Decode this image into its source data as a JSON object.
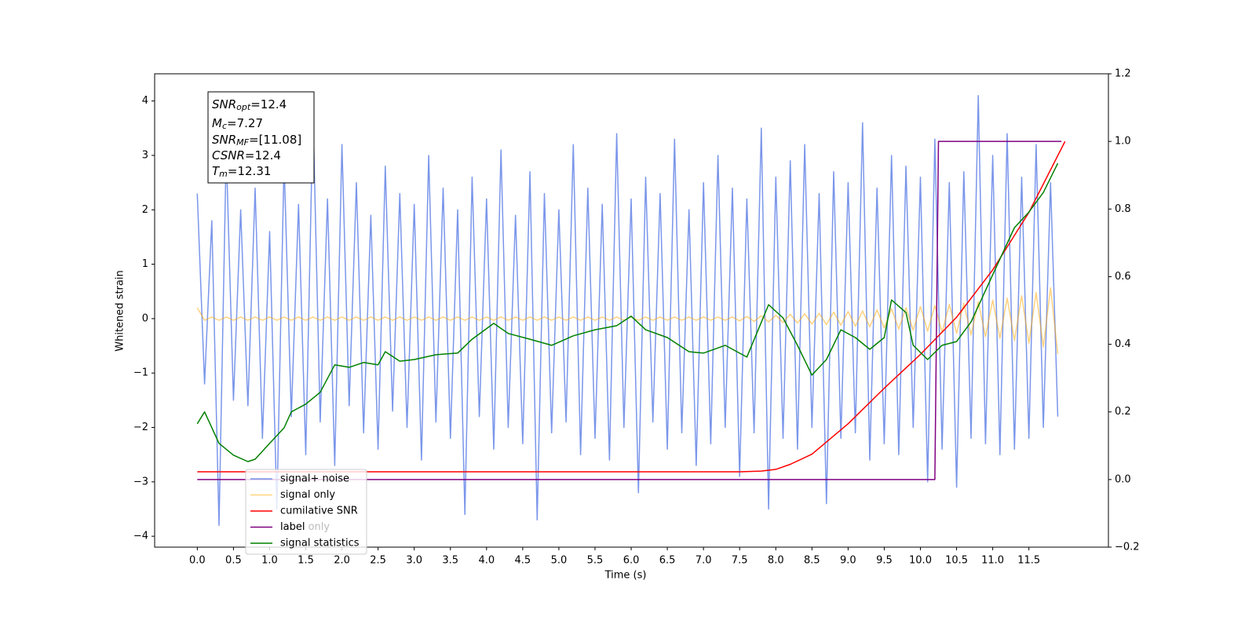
{
  "chart_data": {
    "type": "line",
    "xlabel": "Time (s)",
    "ylabel": "Whitened strain",
    "xlim": [
      -0.59,
      12.6
    ],
    "ylim": [
      -4.2,
      4.5
    ],
    "y2lim": [
      -0.2,
      1.2
    ],
    "xticks": [
      {
        "value": 0,
        "label": "0.0"
      },
      0.5,
      {
        "value": 1,
        "label": "1.0"
      },
      1.5,
      {
        "value": 2,
        "label": "2.0"
      },
      2.5,
      {
        "value": 3,
        "label": "3.0"
      },
      3.5,
      {
        "value": 4,
        "label": "4.0"
      },
      4.5,
      {
        "value": 5,
        "label": "5.0"
      },
      5.5,
      {
        "value": 6,
        "label": "6.0"
      },
      6.5,
      {
        "value": 7,
        "label": "7.0"
      },
      7.5,
      {
        "value": 8,
        "label": "8.0"
      },
      8.5,
      {
        "value": 9,
        "label": "9.0"
      },
      9.5,
      {
        "value": 10,
        "label": "10.0"
      },
      10.5,
      {
        "value": 11,
        "label": "11.0"
      },
      11.5
    ],
    "yticks": [
      {
        "value": -4,
        "label": "−4"
      },
      {
        "value": -3,
        "label": "−3"
      },
      {
        "value": -2,
        "label": "−2"
      },
      {
        "value": -1,
        "label": "−1"
      },
      0,
      1,
      2,
      3,
      4
    ],
    "y2ticks": [
      {
        "value": -0.2,
        "label": "−0.2"
      },
      {
        "value": 0,
        "label": "0.0"
      },
      0.2,
      0.4,
      0.6,
      0.8,
      {
        "value": 1,
        "label": "1.0"
      },
      1.2
    ],
    "annotations": [
      {
        "symbol": "SNR",
        "subscript": "opt",
        "text": "=12.4"
      },
      {
        "symbol": "M",
        "subscript": "c",
        "text": "=7.27"
      },
      {
        "symbol": "SNR",
        "subscript": "MF",
        "text": "=[11.08]"
      },
      {
        "symbol": "CSNR",
        "text": "=12.4"
      },
      {
        "symbol": "T",
        "subscript": "m",
        "text": "=12.31"
      }
    ],
    "legend_hidden_entry": "label only",
    "x": [
      0.0,
      0.1,
      0.2,
      0.3,
      0.4,
      0.5,
      0.6,
      0.7,
      0.8,
      0.9,
      1.0,
      1.1,
      1.2,
      1.3,
      1.4,
      1.5,
      1.6,
      1.7,
      1.8,
      1.9,
      2.0,
      2.1,
      2.2,
      2.3,
      2.4,
      2.5,
      2.6,
      2.7,
      2.8,
      2.9,
      3.0,
      3.1,
      3.2,
      3.3,
      3.4,
      3.5,
      3.6,
      3.7,
      3.8,
      3.9,
      4.0,
      4.1,
      4.2,
      4.3,
      4.4,
      4.5,
      4.6,
      4.7,
      4.8,
      4.9,
      5.0,
      5.1,
      5.2,
      5.3,
      5.4,
      5.5,
      5.6,
      5.7,
      5.8,
      5.9,
      6.0,
      6.1,
      6.2,
      6.3,
      6.4,
      6.5,
      6.6,
      6.7,
      6.8,
      6.9,
      7.0,
      7.1,
      7.2,
      7.3,
      7.4,
      7.5,
      7.6,
      7.7,
      7.8,
      7.9,
      8.0,
      8.1,
      8.2,
      8.3,
      8.4,
      8.5,
      8.6,
      8.7,
      8.8,
      8.9,
      9.0,
      9.1,
      9.2,
      9.3,
      9.4,
      9.5,
      9.6,
      9.7,
      9.8,
      9.9,
      10.0,
      10.1,
      10.2,
      10.3,
      10.4,
      10.5,
      10.6,
      10.7,
      10.8,
      10.9,
      11.0,
      11.1,
      11.2,
      11.3,
      11.4,
      11.5,
      11.6,
      11.7,
      11.8,
      11.9
    ],
    "series": [
      {
        "name": "signal+ noise",
        "color": "#4169e1",
        "opacity": 0.7,
        "values": [
          2.3,
          -1.2,
          1.8,
          -3.8,
          3.1,
          -1.5,
          2.0,
          -1.6,
          2.4,
          -2.2,
          1.6,
          -3.5,
          2.9,
          -1.8,
          2.1,
          -2.5,
          3.8,
          -1.9,
          2.2,
          -2.7,
          3.2,
          -1.6,
          2.5,
          -2.1,
          1.9,
          -2.4,
          2.8,
          -1.7,
          2.3,
          -2.0,
          2.1,
          -2.6,
          3.0,
          -1.9,
          2.4,
          -2.2,
          2.0,
          -3.6,
          2.6,
          -1.8,
          2.2,
          -2.4,
          3.1,
          -2.0,
          1.9,
          -2.3,
          2.7,
          -3.7,
          2.3,
          -2.1,
          2.0,
          -1.9,
          3.2,
          -2.5,
          2.4,
          -2.2,
          2.1,
          -2.6,
          3.4,
          -2.0,
          2.2,
          -3.2,
          2.6,
          -1.9,
          2.3,
          -2.4,
          3.3,
          -2.1,
          2.0,
          -2.7,
          2.5,
          -2.3,
          3.0,
          -2.0,
          2.4,
          -2.9,
          2.2,
          -2.1,
          3.5,
          -3.5,
          2.6,
          -2.2,
          2.9,
          -2.4,
          3.2,
          -2.0,
          2.3,
          -3.4,
          2.7,
          -2.2,
          2.5,
          -2.1,
          3.6,
          -2.6,
          2.4,
          -2.3,
          3.0,
          -2.5,
          2.8,
          -2.0,
          2.6,
          -3.0,
          3.3,
          -2.4,
          2.5,
          -3.1,
          2.7,
          -2.2,
          4.1,
          -2.3,
          3.0,
          -2.5,
          3.4,
          -2.4,
          2.6,
          -2.2,
          3.2,
          -2.0,
          2.5,
          -1.8
        ]
      },
      {
        "name": "signal only",
        "color": "#ffa500",
        "opacity": 0.5,
        "values": [
          0.2,
          -0.03,
          0.03,
          -0.03,
          0.03,
          -0.03,
          0.03,
          -0.03,
          0.03,
          -0.03,
          0.03,
          -0.03,
          0.03,
          -0.03,
          0.03,
          -0.03,
          0.03,
          -0.03,
          0.03,
          -0.03,
          0.03,
          -0.03,
          0.03,
          -0.03,
          0.03,
          -0.03,
          0.03,
          -0.03,
          0.03,
          -0.03,
          0.03,
          -0.03,
          0.03,
          -0.03,
          0.03,
          -0.03,
          0.03,
          -0.03,
          0.03,
          -0.03,
          0.03,
          -0.03,
          0.03,
          -0.03,
          0.03,
          -0.03,
          0.03,
          -0.03,
          0.03,
          -0.03,
          0.03,
          -0.03,
          0.03,
          -0.03,
          0.03,
          -0.03,
          0.03,
          -0.03,
          0.03,
          -0.03,
          0.03,
          -0.03,
          0.03,
          -0.03,
          0.03,
          -0.03,
          0.03,
          -0.03,
          0.03,
          -0.03,
          0.03,
          -0.03,
          0.03,
          -0.03,
          0.03,
          -0.04,
          0.04,
          -0.05,
          0.05,
          -0.06,
          0.06,
          -0.07,
          0.08,
          -0.08,
          0.09,
          -0.1,
          0.1,
          -0.11,
          0.12,
          -0.12,
          0.13,
          -0.14,
          0.14,
          -0.15,
          0.16,
          -0.17,
          0.18,
          -0.19,
          0.2,
          -0.21,
          0.22,
          -0.23,
          0.24,
          -0.25,
          0.26,
          -0.27,
          0.28,
          -0.3,
          0.31,
          -0.33,
          0.34,
          -0.36,
          0.38,
          -0.4,
          0.42,
          -0.45,
          0.48,
          -0.52,
          0.57,
          -0.65
        ]
      },
      {
        "name": "cumilative SNR",
        "color": "#ff0000",
        "axis": "y2",
        "x": [
          0,
          1,
          2,
          3,
          4,
          5,
          6,
          7,
          7.5,
          7.8,
          8.0,
          8.2,
          8.5,
          9.0,
          9.5,
          10.0,
          10.5,
          11.0,
          11.5,
          12.0
        ],
        "values": [
          0.023,
          0.023,
          0.023,
          0.023,
          0.023,
          0.023,
          0.023,
          0.023,
          0.023,
          0.025,
          0.03,
          0.045,
          0.075,
          0.165,
          0.27,
          0.37,
          0.48,
          0.62,
          0.79,
          1.0
        ]
      },
      {
        "name": "label",
        "color": "#800080",
        "axis": "y2",
        "x": [
          0,
          10.2,
          10.25,
          11.95
        ],
        "values": [
          0,
          0,
          1,
          1
        ]
      },
      {
        "name": "signal statistics",
        "color": "#008000",
        "axis": "y2",
        "x": [
          0,
          0.1,
          0.3,
          0.5,
          0.7,
          0.8,
          1.0,
          1.2,
          1.3,
          1.5,
          1.7,
          1.9,
          2.1,
          2.3,
          2.5,
          2.6,
          2.8,
          3.0,
          3.3,
          3.6,
          3.8,
          4.1,
          4.3,
          4.6,
          4.9,
          5.2,
          5.5,
          5.8,
          6.0,
          6.2,
          6.5,
          6.8,
          7.0,
          7.3,
          7.6,
          7.9,
          8.1,
          8.3,
          8.5,
          8.7,
          8.9,
          9.1,
          9.3,
          9.5,
          9.6,
          9.8,
          9.9,
          10.1,
          10.3,
          10.5,
          10.7,
          10.9,
          11.1,
          11.3,
          11.5,
          11.7,
          11.9
        ],
        "values": [
          0.165,
          0.2,
          0.107,
          0.072,
          0.053,
          0.06,
          0.107,
          0.153,
          0.2,
          0.223,
          0.258,
          0.339,
          0.332,
          0.346,
          0.339,
          0.378,
          0.35,
          0.355,
          0.369,
          0.374,
          0.415,
          0.462,
          0.432,
          0.415,
          0.397,
          0.425,
          0.443,
          0.455,
          0.483,
          0.443,
          0.42,
          0.378,
          0.374,
          0.397,
          0.362,
          0.517,
          0.478,
          0.397,
          0.309,
          0.355,
          0.443,
          0.42,
          0.385,
          0.42,
          0.531,
          0.494,
          0.397,
          0.355,
          0.397,
          0.408,
          0.466,
          0.559,
          0.652,
          0.745,
          0.791,
          0.849,
          0.935
        ]
      }
    ]
  }
}
